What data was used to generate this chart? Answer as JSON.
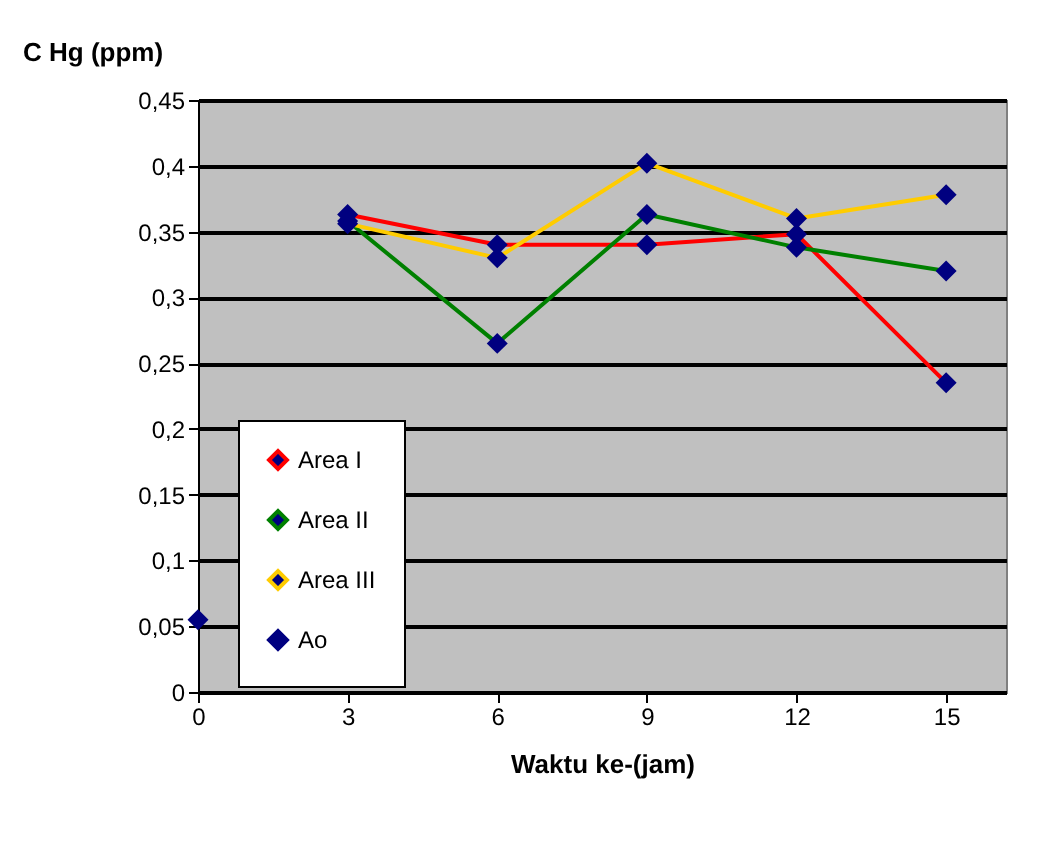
{
  "chart_data": {
    "type": "line",
    "xlabel": "Waktu ke-(jam)",
    "ylabel": "C Hg (ppm)",
    "xlim": [
      0,
      16.2
    ],
    "xticks": [
      0,
      3,
      6,
      9,
      12,
      15
    ],
    "ylim": [
      0,
      0.45
    ],
    "yticks": [
      0,
      {
        "value": 0.05,
        "label": "0,05"
      },
      {
        "value": 0.1,
        "label": "0,1"
      },
      {
        "value": 0.15,
        "label": "0,15"
      },
      {
        "value": 0.2,
        "label": "0,2"
      },
      {
        "value": 0.25,
        "label": "0,25"
      },
      {
        "value": 0.3,
        "label": "0,3"
      },
      {
        "value": 0.35,
        "label": "0,35"
      },
      {
        "value": 0.4,
        "label": "0,4"
      },
      {
        "value": 0.45,
        "label": "0,45"
      }
    ],
    "grid": "y",
    "legend": "bottom left",
    "marker": "diamond",
    "series": [
      {
        "name": "Area I",
        "color": "#ff0000",
        "x": [
          3,
          6,
          9,
          12,
          15
        ],
        "values": [
          0.363,
          0.34,
          0.34,
          0.348,
          0.235
        ]
      },
      {
        "name": "Area II",
        "color": "#008000",
        "x": [
          3,
          6,
          9,
          12,
          15
        ],
        "values": [
          0.358,
          0.265,
          0.363,
          0.338,
          0.32
        ]
      },
      {
        "name": "Area III",
        "color": "#ffcc00",
        "x": [
          3,
          6,
          9,
          12,
          15
        ],
        "values": [
          0.356,
          0.33,
          0.402,
          0.36,
          0.378
        ]
      },
      {
        "name": "Ao",
        "type": "scatter",
        "color": "#000080",
        "x": [
          0
        ],
        "values": [
          0.055
        ]
      }
    ]
  }
}
